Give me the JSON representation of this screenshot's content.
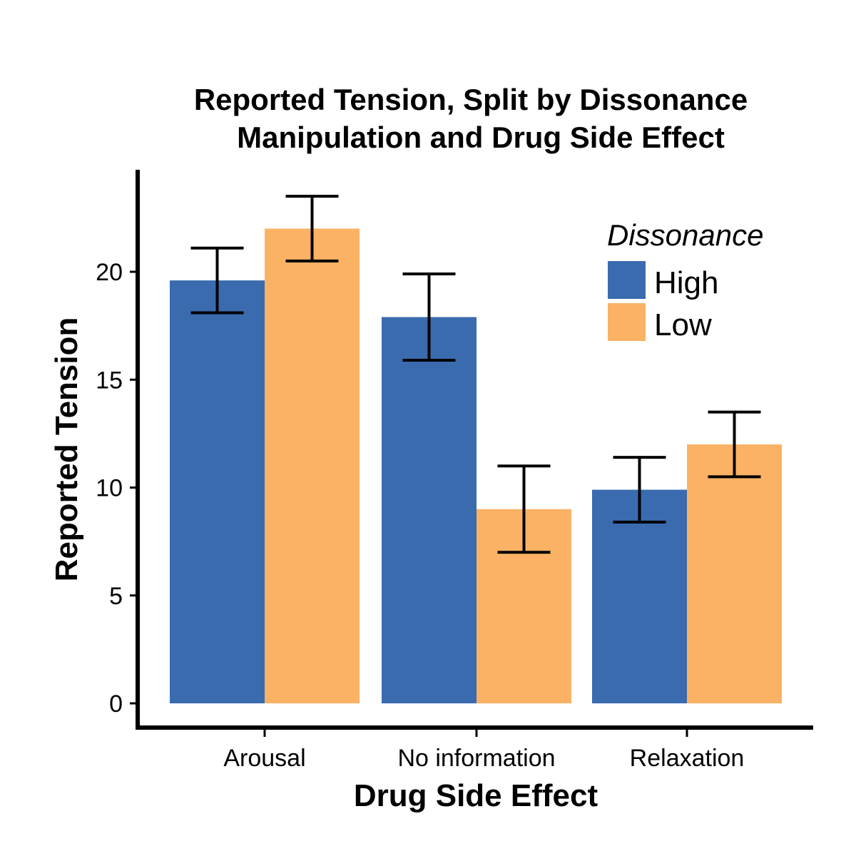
{
  "chart_data": {
    "type": "bar",
    "title": "Reported Tension, Split by Dissonance\nManipulation and Drug Side Effect",
    "title_lines": [
      "Reported Tension, Split by Dissonance",
      "Manipulation and Drug Side Effect"
    ],
    "xlabel": "Drug Side Effect",
    "ylabel": "Reported Tension",
    "categories": [
      "Arousal",
      "No information",
      "Relaxation"
    ],
    "series": [
      {
        "name": "High",
        "color": "#3A6BAF",
        "values": [
          19.6,
          17.9,
          9.9
        ],
        "error": [
          1.5,
          2.0,
          1.5
        ]
      },
      {
        "name": "Low",
        "color": "#FBB264",
        "values": [
          22.0,
          9.0,
          12.0
        ],
        "error": [
          1.5,
          2.0,
          1.5
        ]
      }
    ],
    "ylim": [
      -1.2,
      24.6
    ],
    "yticks": [
      0,
      5,
      10,
      15,
      20
    ],
    "grid": false,
    "legend": {
      "title": "Dissonance",
      "position": "top-right"
    }
  }
}
